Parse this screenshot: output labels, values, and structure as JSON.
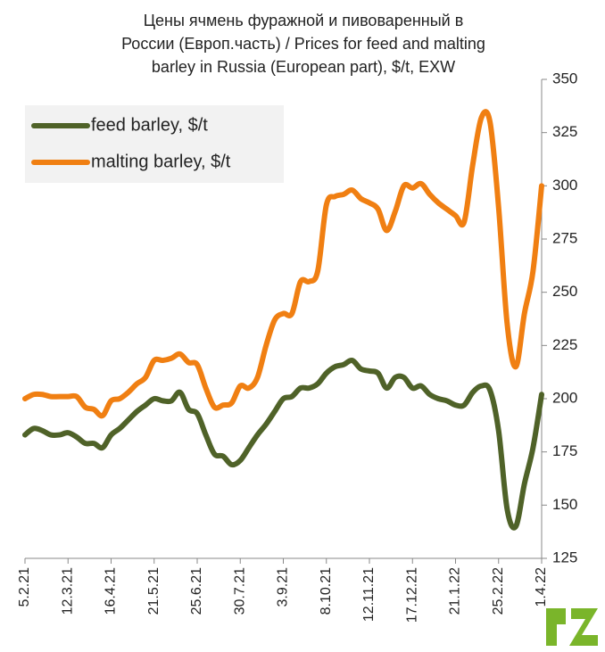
{
  "chart_data": {
    "type": "line",
    "title": [
      "Цены ячмень фуражной и пивоваренный в",
      "России (Европ.часть) / Prices for feed and malting",
      "barley in Russia (European part), $/t, EXW"
    ],
    "categories": [
      "5.2.21",
      null,
      null,
      null,
      null,
      "12.3.21",
      null,
      null,
      null,
      null,
      "16.4.21",
      null,
      null,
      null,
      null,
      "21.5.21",
      null,
      null,
      null,
      null,
      "25.6.21",
      null,
      null,
      null,
      null,
      "30.7.21",
      null,
      null,
      null,
      null,
      "3.9.21",
      null,
      null,
      null,
      null,
      "8.10.21",
      null,
      null,
      null,
      null,
      "12.11.21",
      null,
      null,
      null,
      null,
      "17.12.21",
      null,
      null,
      null,
      null,
      "21.1.22",
      null,
      null,
      null,
      null,
      "25.2.22",
      null,
      null,
      null,
      null,
      "1.4.22"
    ],
    "series": [
      {
        "name": "feed barley, $/t",
        "color": "#4f6228",
        "values": [
          183,
          186,
          185,
          183,
          183,
          184,
          182,
          179,
          179,
          177,
          183,
          186,
          190,
          194,
          197,
          200,
          199,
          199,
          203,
          195,
          193,
          183,
          174,
          173,
          169,
          171,
          177,
          183,
          188,
          194,
          200,
          201,
          205,
          205,
          207,
          212,
          215,
          216,
          218,
          214,
          213,
          212,
          205,
          210,
          210,
          205,
          206,
          202,
          200,
          199,
          197,
          197,
          203,
          206,
          204,
          185,
          148,
          140,
          160,
          177,
          202
        ]
      },
      {
        "name": "malting barley, $/t",
        "color": "#f07f12",
        "values": [
          200,
          202,
          202,
          201,
          201,
          201,
          201,
          196,
          195,
          192,
          199,
          200,
          203,
          207,
          210,
          218,
          218,
          219,
          221,
          217,
          216,
          205,
          196,
          197,
          198,
          206,
          205,
          210,
          225,
          237,
          240,
          240,
          255,
          255,
          260,
          291,
          295,
          296,
          298,
          294,
          292,
          289,
          279,
          288,
          300,
          299,
          301,
          296,
          292,
          289,
          286,
          283,
          310,
          332,
          330,
          290,
          235,
          215,
          240,
          260,
          300
        ]
      }
    ],
    "ylim": [
      125,
      350
    ],
    "yticks": [
      125,
      150,
      175,
      200,
      225,
      250,
      275,
      300,
      325,
      350
    ],
    "grid": false,
    "legend": "upper left"
  }
}
